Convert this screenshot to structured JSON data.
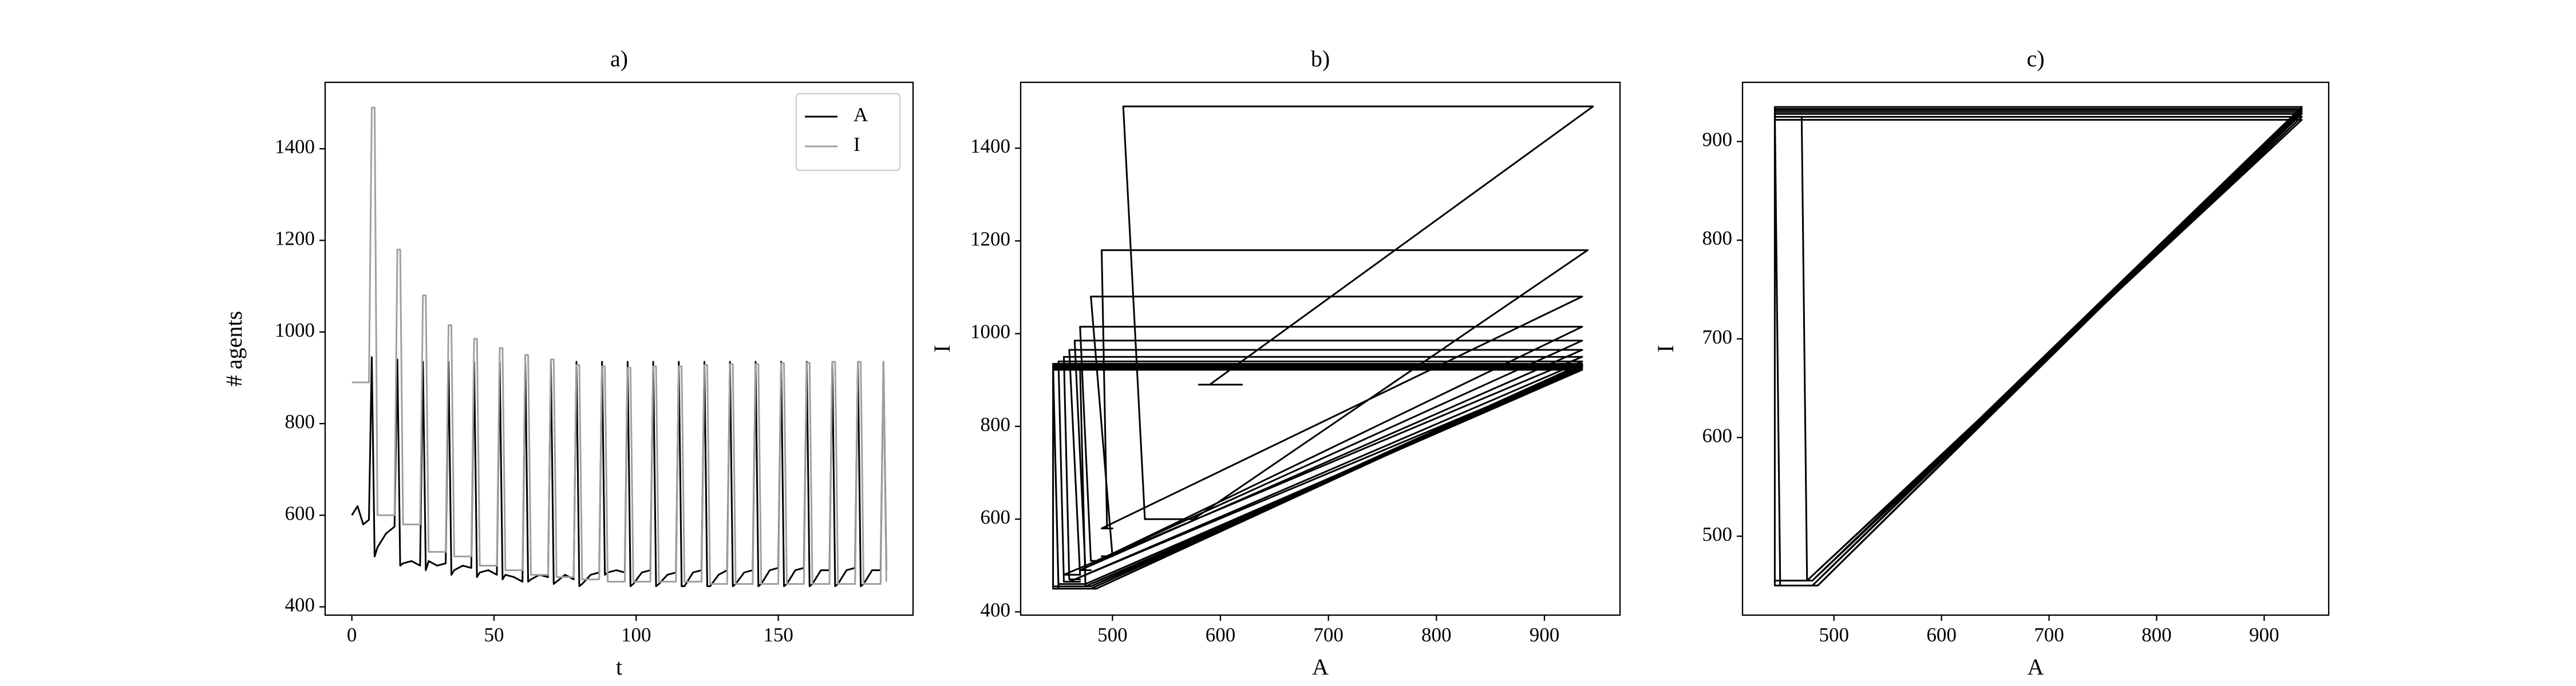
{
  "chart_data": [
    {
      "type": "line",
      "title": "a)",
      "xlabel": "t",
      "ylabel": "# agents",
      "legend": "upper right",
      "xlim": [
        -9.4,
        197.4
      ],
      "ylim": [
        382,
        1545
      ],
      "xticks": [
        0,
        50,
        100,
        150
      ],
      "yticks": [
        400,
        600,
        800,
        1000,
        1200,
        1400
      ],
      "x": [
        0,
        2,
        4,
        6,
        7,
        8,
        9,
        12,
        15,
        16,
        17,
        18,
        21,
        24,
        25,
        26,
        27,
        30,
        33,
        34,
        35,
        36,
        39,
        42,
        43,
        44,
        45,
        48,
        51,
        52,
        53,
        54,
        57,
        60,
        61,
        62,
        63,
        66,
        69,
        70,
        71,
        72,
        75,
        78,
        79,
        80,
        81,
        84,
        87,
        88,
        89,
        90,
        93,
        96,
        97,
        98,
        99,
        102,
        105,
        106,
        107,
        108,
        111,
        114,
        115,
        116,
        117,
        120,
        123,
        124,
        125,
        126,
        129,
        132,
        133,
        134,
        135,
        138,
        141,
        142,
        143,
        144,
        147,
        150,
        151,
        152,
        153,
        156,
        159,
        160,
        161,
        162,
        165,
        168,
        169,
        170,
        171,
        174,
        177,
        178,
        179,
        180,
        183,
        186,
        187,
        188
      ],
      "series": [
        {
          "name": "A",
          "color": "#000000",
          "values": [
            600,
            620,
            580,
            590,
            945,
            510,
            530,
            560,
            575,
            940,
            490,
            495,
            500,
            490,
            935,
            480,
            500,
            490,
            495,
            935,
            470,
            480,
            490,
            485,
            935,
            465,
            475,
            480,
            470,
            935,
            460,
            470,
            465,
            455,
            935,
            455,
            460,
            470,
            465,
            935,
            450,
            455,
            470,
            460,
            935,
            445,
            450,
            470,
            475,
            935,
            470,
            475,
            480,
            475,
            935,
            445,
            450,
            475,
            480,
            935,
            445,
            450,
            470,
            475,
            935,
            445,
            445,
            475,
            480,
            935,
            445,
            445,
            470,
            480,
            935,
            445,
            450,
            475,
            480,
            935,
            445,
            450,
            480,
            485,
            935,
            445,
            450,
            480,
            485,
            935,
            445,
            450,
            480,
            480,
            935,
            445,
            450,
            480,
            485,
            935,
            445,
            450,
            480,
            480,
            935,
            480
          ]
        },
        {
          "name": "I",
          "color": "#a0a0a0",
          "values": [
            890,
            890,
            890,
            890,
            1490,
            1490,
            600,
            600,
            600,
            1180,
            1180,
            580,
            580,
            580,
            1080,
            1080,
            520,
            520,
            520,
            1015,
            1015,
            510,
            510,
            510,
            985,
            985,
            490,
            490,
            490,
            965,
            965,
            480,
            480,
            480,
            950,
            950,
            470,
            470,
            470,
            940,
            940,
            465,
            465,
            465,
            928,
            928,
            460,
            460,
            460,
            925,
            925,
            455,
            455,
            455,
            922,
            922,
            455,
            455,
            455,
            925,
            925,
            455,
            455,
            455,
            925,
            925,
            455,
            455,
            455,
            928,
            928,
            450,
            450,
            450,
            930,
            930,
            450,
            450,
            450,
            930,
            930,
            450,
            450,
            450,
            932,
            932,
            450,
            450,
            450,
            933,
            933,
            450,
            450,
            450,
            935,
            935,
            450,
            450,
            450,
            935,
            935,
            450,
            450,
            450,
            935,
            455
          ]
        }
      ]
    },
    {
      "type": "line",
      "title": "b)",
      "xlabel": "A",
      "ylabel": "I",
      "xlim": [
        415,
        970
      ],
      "ylim": [
        393,
        1542
      ],
      "xticks": [
        500,
        600,
        700,
        800,
        900
      ],
      "yticks": [
        400,
        600,
        800,
        1000,
        1200,
        1400
      ],
      "x": [
        600,
        620,
        580,
        590,
        945,
        510,
        530,
        560,
        575,
        940,
        490,
        495,
        500,
        490,
        935,
        480,
        500,
        490,
        495,
        935,
        470,
        480,
        490,
        485,
        935,
        465,
        475,
        480,
        470,
        935,
        460,
        470,
        465,
        455,
        935,
        455,
        460,
        470,
        465,
        935,
        450,
        455,
        470,
        460,
        935,
        445,
        450,
        470,
        475,
        935,
        470,
        475,
        480,
        475,
        935,
        445,
        450,
        475,
        480,
        935,
        445,
        450,
        470,
        475,
        935,
        445,
        445,
        475,
        480,
        935,
        445,
        445,
        470,
        480,
        935,
        445,
        450,
        475,
        480,
        935,
        445,
        450,
        480,
        485,
        935,
        445,
        450,
        480,
        485,
        935,
        445,
        450,
        480,
        480,
        935,
        445,
        450,
        480,
        485,
        935,
        445,
        450,
        480,
        480,
        935,
        480
      ],
      "series": [
        {
          "color": "#000000",
          "values": [
            890,
            890,
            890,
            890,
            1490,
            1490,
            600,
            600,
            600,
            1180,
            1180,
            580,
            580,
            580,
            1080,
            1080,
            520,
            520,
            520,
            1015,
            1015,
            510,
            510,
            510,
            985,
            985,
            490,
            490,
            490,
            965,
            965,
            480,
            480,
            480,
            950,
            950,
            470,
            470,
            470,
            940,
            940,
            465,
            465,
            465,
            928,
            928,
            460,
            460,
            460,
            925,
            925,
            455,
            455,
            455,
            922,
            922,
            455,
            455,
            455,
            925,
            925,
            455,
            455,
            455,
            925,
            925,
            455,
            455,
            455,
            928,
            928,
            450,
            450,
            450,
            930,
            930,
            450,
            450,
            450,
            930,
            930,
            450,
            450,
            450,
            932,
            932,
            450,
            450,
            450,
            933,
            933,
            450,
            450,
            450,
            935,
            935,
            450,
            450,
            450,
            935,
            935,
            450,
            450,
            450,
            935,
            455
          ]
        }
      ]
    },
    {
      "type": "line",
      "title": "c)",
      "xlabel": "A",
      "ylabel": "I",
      "xlim": [
        415,
        960
      ],
      "ylim": [
        420,
        960
      ],
      "xticks": [
        500,
        600,
        700,
        800,
        900
      ],
      "yticks": [
        500,
        600,
        700,
        800,
        900
      ],
      "x": [
        935,
        470,
        475,
        480,
        475,
        935,
        445,
        450,
        475,
        480,
        935,
        445,
        450,
        470,
        475,
        935,
        445,
        445,
        475,
        480,
        935,
        445,
        445,
        470,
        480,
        935,
        445,
        450,
        475,
        480,
        935,
        445,
        450,
        480,
        485,
        935,
        445,
        450,
        480,
        485,
        935,
        445,
        450,
        480,
        480,
        935,
        445,
        450,
        480,
        485,
        935,
        445,
        450,
        480,
        480,
        935,
        480
      ],
      "series": [
        {
          "color": "#000000",
          "values": [
            925,
            925,
            455,
            455,
            455,
            922,
            922,
            455,
            455,
            455,
            925,
            925,
            455,
            455,
            455,
            925,
            925,
            455,
            455,
            455,
            928,
            928,
            450,
            450,
            450,
            930,
            930,
            450,
            450,
            450,
            930,
            930,
            450,
            450,
            450,
            932,
            932,
            450,
            450,
            450,
            933,
            933,
            450,
            450,
            450,
            935,
            935,
            450,
            450,
            450,
            935,
            935,
            450,
            450,
            450,
            935,
            455
          ]
        }
      ]
    }
  ]
}
